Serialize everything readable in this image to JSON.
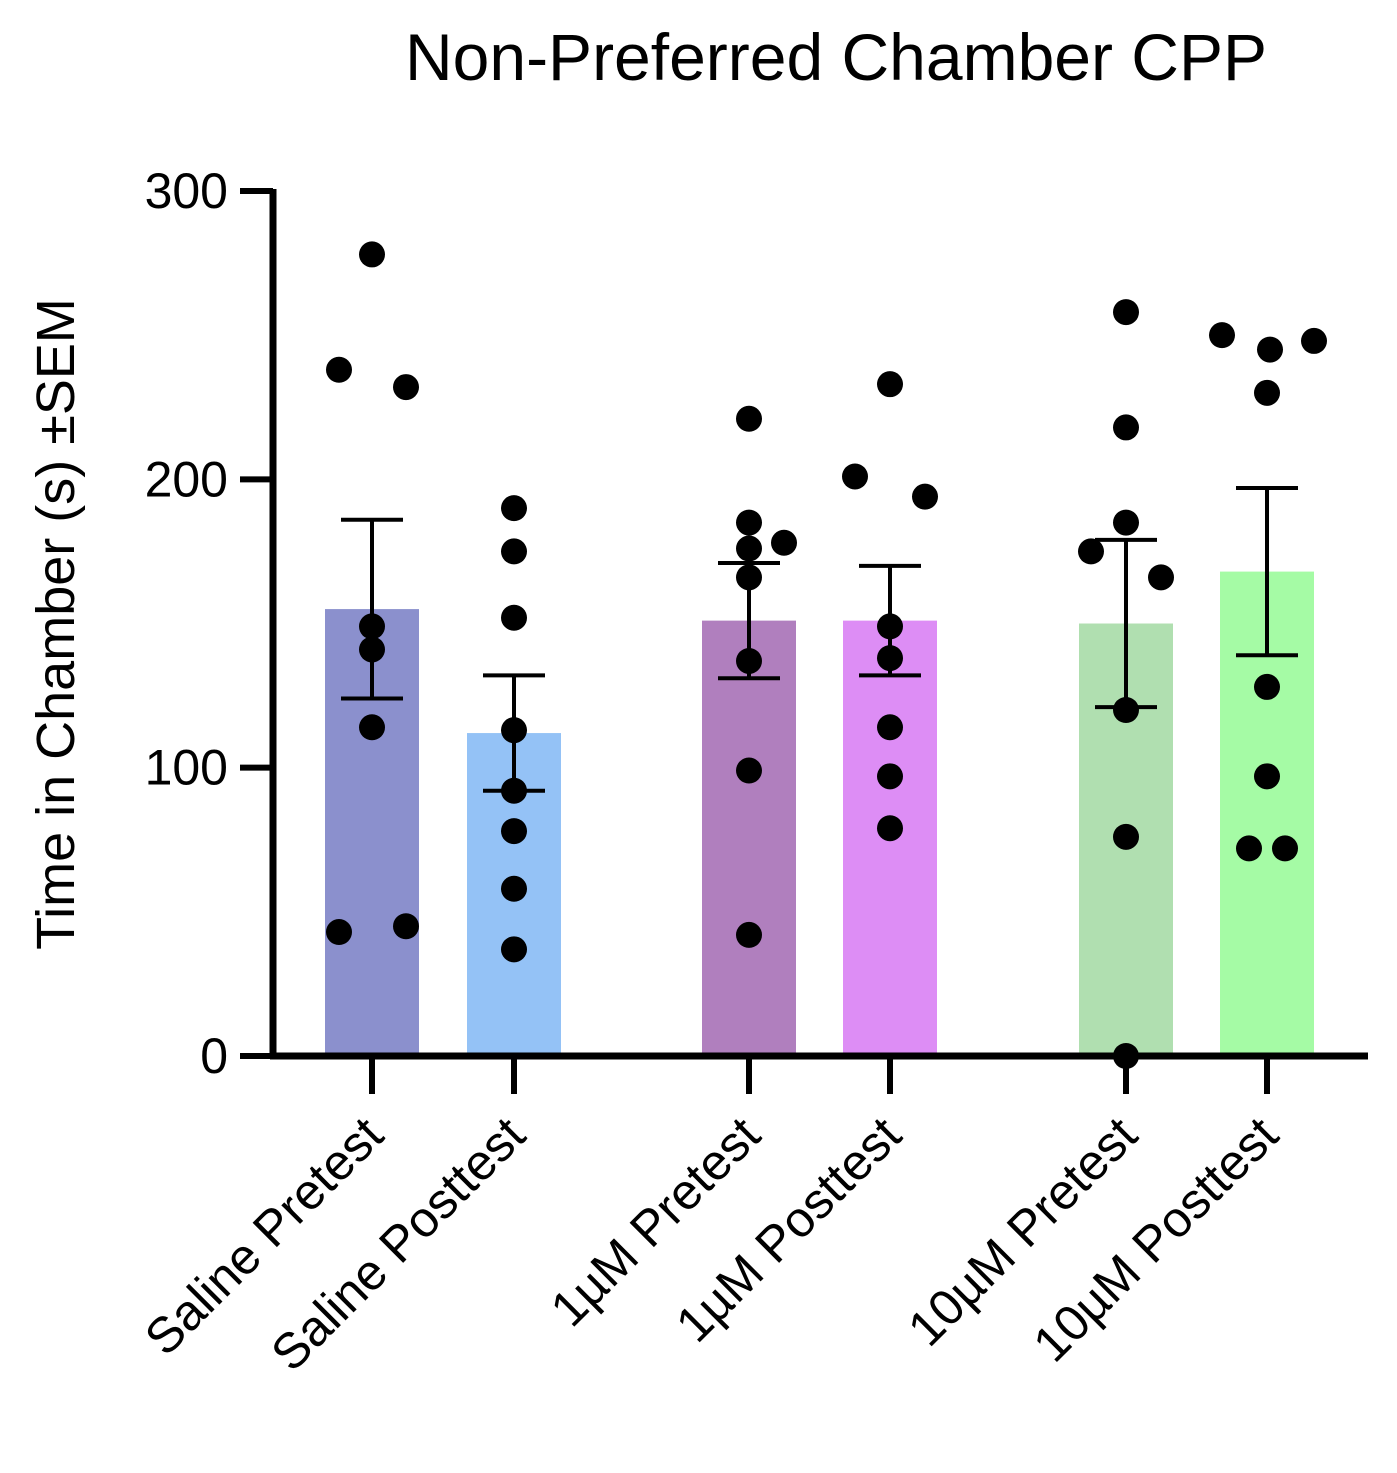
{
  "chart_data": {
    "type": "bar",
    "title": "Non-Preferred Chamber CPP",
    "xlabel": "",
    "ylabel": "Time in Chamber (s) ±SEM",
    "ylim": [
      0,
      300
    ],
    "yticks": [
      0,
      100,
      200,
      300
    ],
    "ytick_labels": [
      "0",
      "100",
      "200",
      "300"
    ],
    "grid": false,
    "legend": "none",
    "categories": [
      "Saline Pretest",
      "Saline Posttest",
      "1µM Pretest",
      "1µM Posttest",
      "10µM Pretest",
      "10µM Posttest"
    ],
    "values": [
      155,
      112,
      151,
      151,
      150,
      168
    ],
    "sem": [
      31,
      20,
      20,
      19,
      29,
      29
    ],
    "bar_colors": [
      "#8b90cd",
      "#94c2f6",
      "#b07fbe",
      "#dd8df5",
      "#b0dfb0",
      "#a5fba5"
    ],
    "points": [
      [
        278,
        238,
        232,
        149,
        141,
        114,
        43,
        45
      ],
      [
        190,
        175,
        152,
        113,
        92,
        78,
        58,
        37
      ],
      [
        221,
        185,
        176,
        178,
        166,
        137,
        99,
        42
      ],
      [
        233,
        201,
        194,
        149,
        138,
        114,
        97,
        79
      ],
      [
        258,
        218,
        185,
        175,
        166,
        120,
        76,
        0
      ],
      [
        250,
        245,
        248,
        230,
        128,
        97,
        72,
        72
      ]
    ],
    "point_color": "#000000"
  }
}
